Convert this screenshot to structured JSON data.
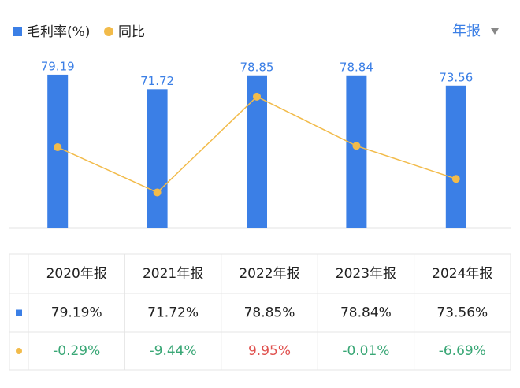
{
  "controls": {
    "period": "年报"
  },
  "chart_data": {
    "type": "bar",
    "categories": [
      "2020年报",
      "2021年报",
      "2022年报",
      "2023年报",
      "2024年报"
    ],
    "series": [
      {
        "name": "毛利率(%)",
        "type": "bar",
        "color": "#3b7fe6",
        "values": [
          79.19,
          71.72,
          78.85,
          78.84,
          73.56
        ],
        "value_labels": [
          "79.19%",
          "71.72%",
          "78.85%",
          "78.84%",
          "73.56%"
        ]
      },
      {
        "name": "同比",
        "type": "line",
        "axis": "y2",
        "color": "#f2bb4a",
        "values": [
          -0.29,
          -9.44,
          9.95,
          -0.01,
          -6.69
        ],
        "value_labels": [
          "-0.29%",
          "-9.44%",
          "9.95%",
          "-0.01%",
          "-6.69%"
        ]
      }
    ],
    "ylim": [
      0,
      82
    ],
    "y2lim": [
      -16.7,
      15.5
    ],
    "up_color": "#e0524f",
    "down_color": "#3aa776"
  }
}
